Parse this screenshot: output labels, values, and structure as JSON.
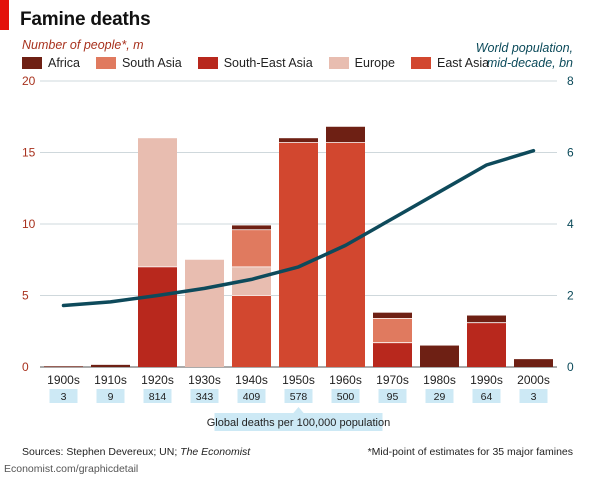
{
  "chart_data": {
    "type": "bar",
    "title": "Famine deaths",
    "ylabel": "Number of people*, m",
    "y2label_line1": "World population,",
    "y2label_line2": "mid-decade, bn",
    "ylim": [
      0,
      20
    ],
    "y_ticks": [
      0,
      5,
      10,
      15,
      20
    ],
    "y2lim": [
      0,
      8
    ],
    "y2_ticks": [
      0,
      2,
      4,
      6,
      8
    ],
    "categories": [
      "1900s",
      "1910s",
      "1920s",
      "1930s",
      "1940s",
      "1950s",
      "1960s",
      "1970s",
      "1980s",
      "1990s",
      "2000s"
    ],
    "series": [
      {
        "name": "East Asia",
        "color": "#d2472f",
        "values": [
          0,
          0,
          0,
          0,
          5.0,
          15.7,
          15.7,
          0,
          0,
          0,
          0
        ]
      },
      {
        "name": "South-East Asia",
        "color": "#b8281d",
        "values": [
          0,
          0,
          7.0,
          0,
          0,
          0,
          0,
          1.7,
          0,
          3.1,
          0
        ]
      },
      {
        "name": "Europe",
        "color": "#e8bdb0",
        "values": [
          0,
          0,
          9.0,
          7.5,
          2.0,
          0,
          0,
          0,
          0,
          0,
          0
        ]
      },
      {
        "name": "South Asia",
        "color": "#e07a5f",
        "values": [
          0,
          0,
          0,
          0,
          2.6,
          0,
          0,
          1.7,
          0,
          0,
          0
        ]
      },
      {
        "name": "Africa",
        "color": "#6e2014",
        "values": [
          0.05,
          0.15,
          0,
          0,
          0.3,
          0.3,
          1.1,
          0.4,
          1.5,
          0.5,
          0.55
        ]
      }
    ],
    "line_series": {
      "name": "World population, mid-decade, bn",
      "color": "#0e4a5b",
      "axis": "right",
      "values": [
        1.72,
        1.82,
        2.0,
        2.2,
        2.45,
        2.8,
        3.4,
        4.15,
        4.9,
        5.65,
        6.05
      ]
    },
    "death_rates": {
      "caption": "Global deaths per 100,000 population",
      "values": [
        "3",
        "9",
        "814",
        "343",
        "409",
        "578",
        "500",
        "95",
        "29",
        "64",
        "3"
      ]
    },
    "legend_order": [
      "Africa",
      "South Asia",
      "South-East Asia",
      "Europe",
      "East Asia"
    ],
    "legend_position": "top-left",
    "grid": true
  },
  "footer": {
    "sources_prefix": "Sources: Stephen Devereux; UN; ",
    "sources_italic": "The Economist",
    "note": "*Mid-point of estimates for 35 major famines",
    "site": "Economist.com/graphicdetail"
  }
}
